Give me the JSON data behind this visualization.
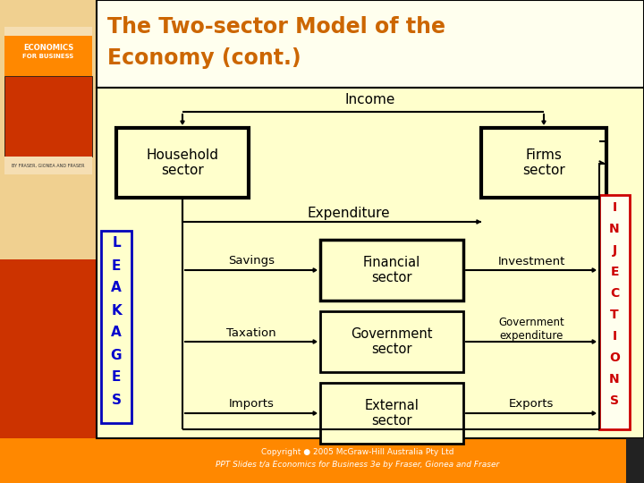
{
  "title_line1": "The Two-sector Model of the",
  "title_line2": "Economy (cont.)",
  "title_color": "#CC6600",
  "bg_cream": "#FFFFCC",
  "bg_light_yellow": "#FFFFEE",
  "bg_outer_top": "#F5DEB3",
  "sidebar_orange": "#CC3300",
  "sidebar_red_bottom": "#CC3300",
  "leakages_color": "#0000CC",
  "injections_color": "#CC0000",
  "box_bg": "#FFFFCC",
  "bottom_bar_color": "#FF8800",
  "copyright1": "Copyright ● 2005 McGraw-Hill Australia Pty Ltd",
  "copyright2": "PPT Slides t/a Economics for Business 3e by Fraser, Gionea and Fraser"
}
